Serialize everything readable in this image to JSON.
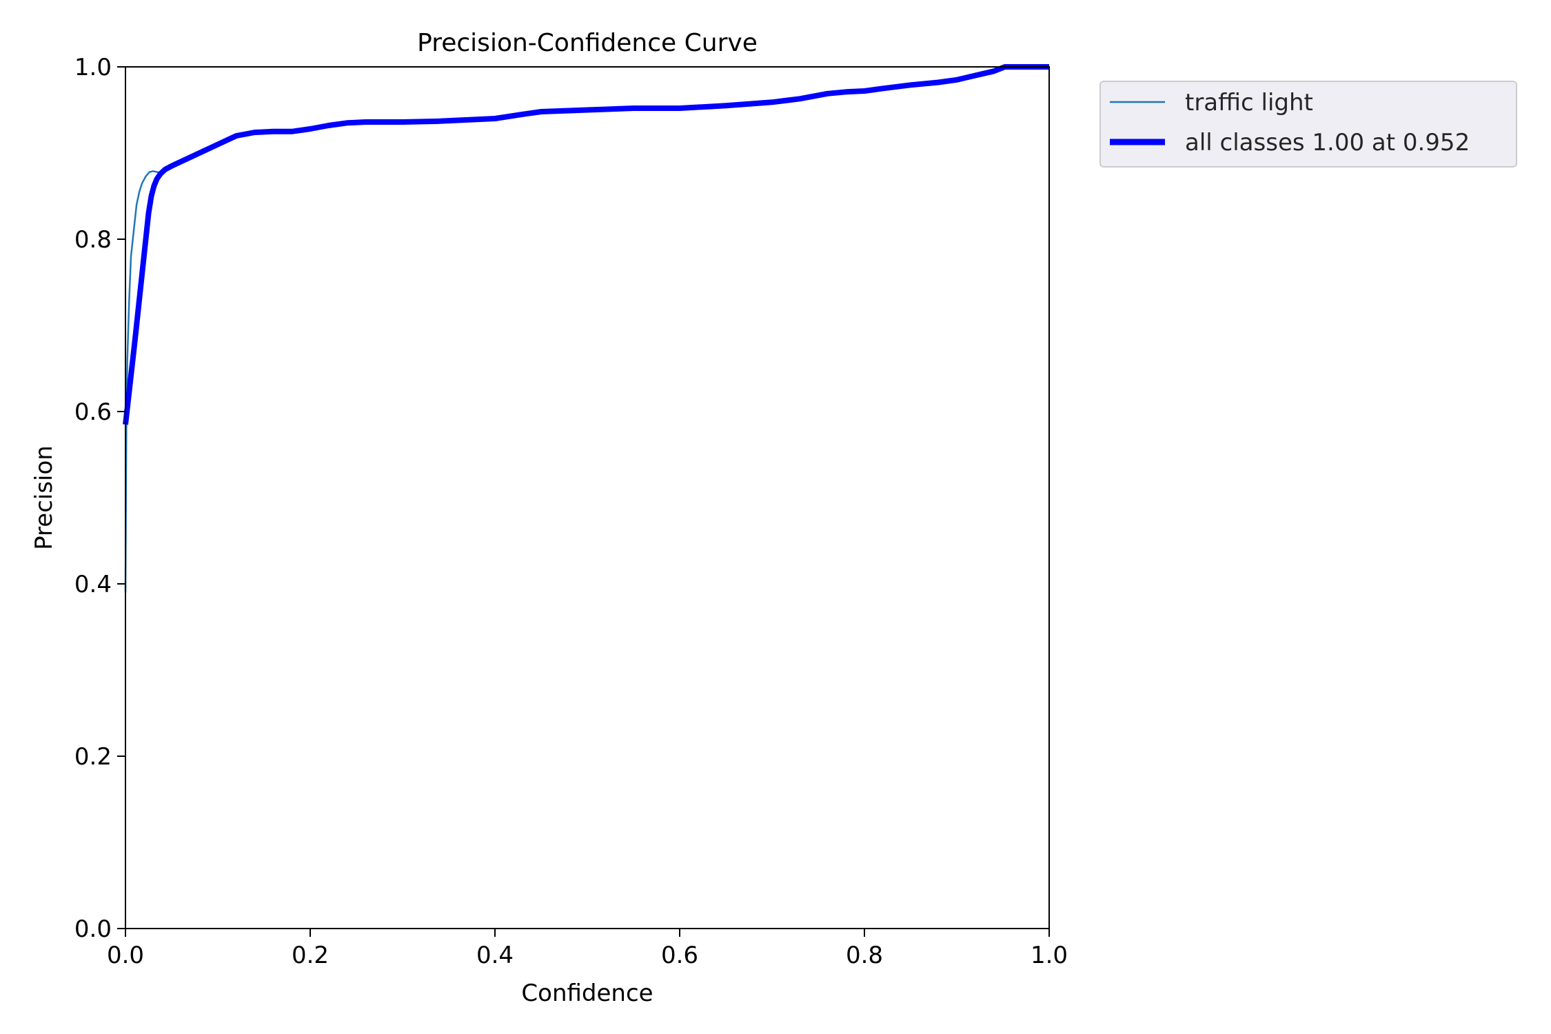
{
  "chart_data": {
    "type": "line",
    "title": "Precision-Confidence Curve",
    "xlabel": "Confidence",
    "ylabel": "Precision",
    "xlim": [
      0,
      1
    ],
    "ylim": [
      0,
      1
    ],
    "xticks": [
      "0.0",
      "0.2",
      "0.4",
      "0.6",
      "0.8",
      "1.0"
    ],
    "yticks": [
      "0.0",
      "0.2",
      "0.4",
      "0.6",
      "0.8",
      "1.0"
    ],
    "grid": false,
    "legend_position": "outside-top-right",
    "series": [
      {
        "name": "traffic light",
        "color": "#1f77b4",
        "style": "thin",
        "x": [
          0.0,
          0.001,
          0.002,
          0.004,
          0.006,
          0.008,
          0.01,
          0.012,
          0.015,
          0.018,
          0.022,
          0.026,
          0.03,
          0.034,
          0.038,
          0.043,
          0.05,
          0.06,
          0.08,
          0.1,
          0.12,
          0.14,
          0.16,
          0.18,
          0.2,
          0.22,
          0.24,
          0.26,
          0.3,
          0.34,
          0.38,
          0.4,
          0.43,
          0.45,
          0.5,
          0.55,
          0.6,
          0.65,
          0.7,
          0.73,
          0.76,
          0.78,
          0.8,
          0.82,
          0.85,
          0.88,
          0.9,
          0.92,
          0.94,
          0.96,
          1.0
        ],
        "y": [
          0.39,
          0.58,
          0.66,
          0.73,
          0.78,
          0.8,
          0.82,
          0.84,
          0.855,
          0.865,
          0.873,
          0.878,
          0.879,
          0.878,
          0.877,
          0.879,
          0.885,
          0.89,
          0.9,
          0.91,
          0.92,
          0.924,
          0.925,
          0.925,
          0.928,
          0.932,
          0.935,
          0.936,
          0.936,
          0.937,
          0.939,
          0.94,
          0.945,
          0.948,
          0.95,
          0.952,
          0.952,
          0.955,
          0.959,
          0.963,
          0.969,
          0.971,
          0.972,
          0.975,
          0.979,
          0.982,
          0.985,
          0.99,
          0.995,
          1.0,
          1.0
        ]
      },
      {
        "name": "all classes 1.00 at 0.952",
        "color": "#0000ff",
        "style": "thick",
        "x": [
          0.0,
          0.01,
          0.02,
          0.025,
          0.028,
          0.031,
          0.034,
          0.038,
          0.043,
          0.05,
          0.06,
          0.08,
          0.1,
          0.12,
          0.14,
          0.16,
          0.18,
          0.2,
          0.22,
          0.24,
          0.26,
          0.3,
          0.34,
          0.38,
          0.4,
          0.43,
          0.45,
          0.5,
          0.55,
          0.6,
          0.65,
          0.7,
          0.73,
          0.76,
          0.78,
          0.8,
          0.82,
          0.85,
          0.88,
          0.9,
          0.92,
          0.94,
          0.952,
          1.0
        ],
        "y": [
          0.585,
          0.68,
          0.78,
          0.83,
          0.85,
          0.862,
          0.87,
          0.876,
          0.881,
          0.885,
          0.89,
          0.9,
          0.91,
          0.92,
          0.924,
          0.925,
          0.925,
          0.928,
          0.932,
          0.935,
          0.936,
          0.936,
          0.937,
          0.939,
          0.94,
          0.945,
          0.948,
          0.95,
          0.952,
          0.952,
          0.955,
          0.959,
          0.963,
          0.969,
          0.971,
          0.972,
          0.975,
          0.979,
          0.982,
          0.985,
          0.99,
          0.995,
          1.0,
          1.0
        ]
      }
    ]
  }
}
